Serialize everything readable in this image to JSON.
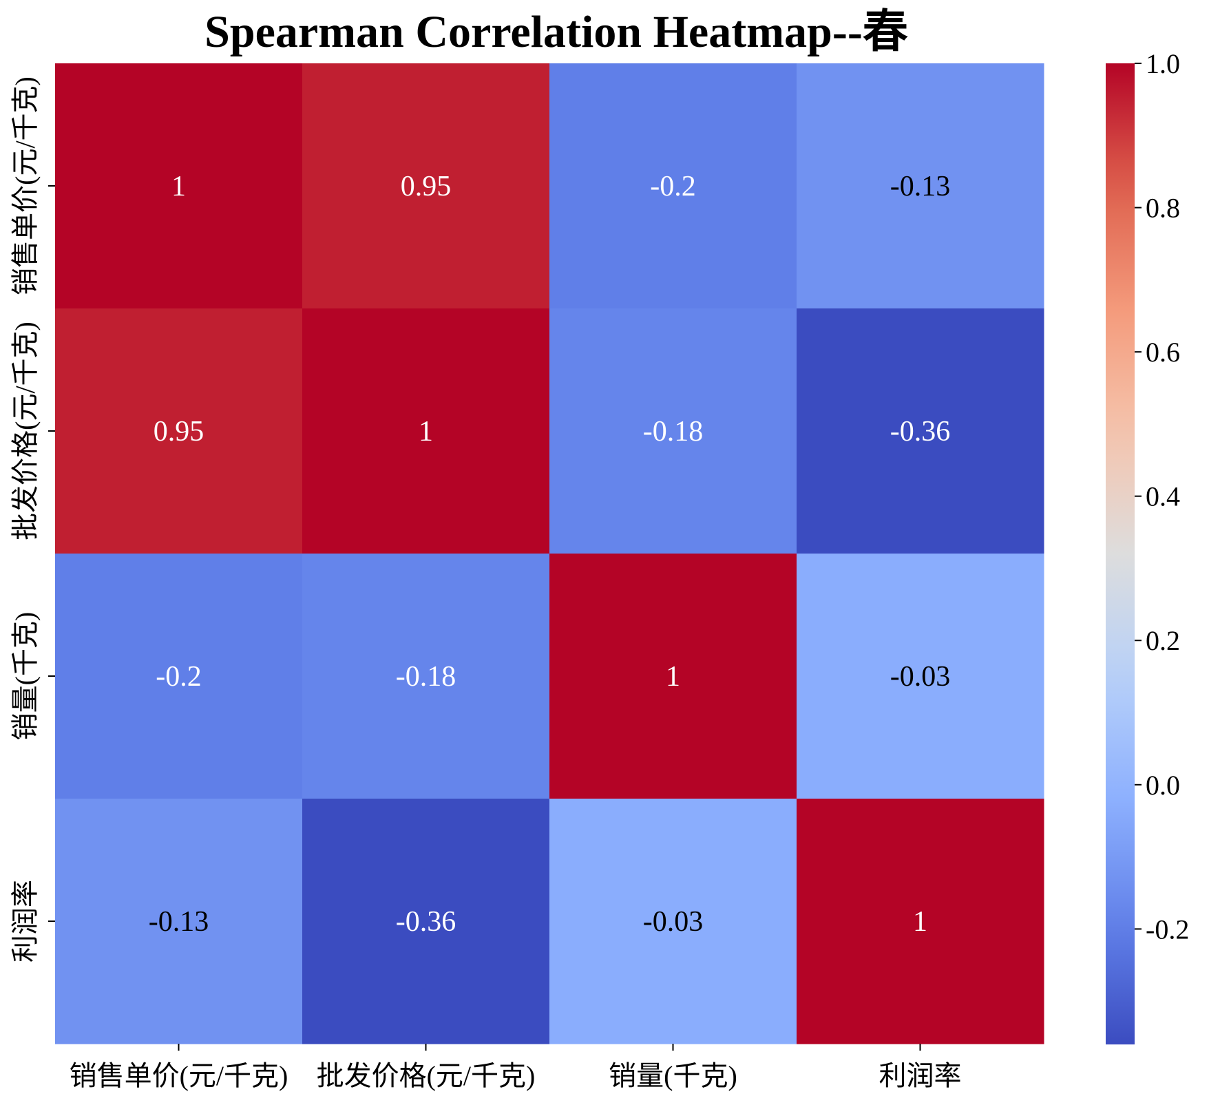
{
  "chart_data": {
    "type": "heatmap",
    "title": "Spearman Correlation Heatmap--春",
    "xlabel": "",
    "ylabel": "",
    "row_labels": [
      "销售单价(元/千克)",
      "批发价格(元/千克)",
      "销量(千克)",
      "利润率"
    ],
    "col_labels": [
      "销售单价(元/千克)",
      "批发价格(元/千克)",
      "销量(千克)",
      "利润率"
    ],
    "values": [
      [
        1,
        0.95,
        -0.2,
        -0.13
      ],
      [
        0.95,
        1,
        -0.18,
        -0.36
      ],
      [
        -0.2,
        -0.18,
        1,
        -0.03
      ],
      [
        -0.13,
        -0.36,
        -0.03,
        1
      ]
    ],
    "annotations": [
      [
        "1",
        "0.95",
        "-0.2",
        "-0.13"
      ],
      [
        "0.95",
        "1",
        "-0.18",
        "-0.36"
      ],
      [
        "-0.2",
        "-0.18",
        "1",
        "-0.03"
      ],
      [
        "-0.13",
        "-0.36",
        "-0.03",
        "1"
      ]
    ],
    "colormap": "coolwarm",
    "vmin": -0.36,
    "vmax": 1.0,
    "colorbar_ticks": [
      1.0,
      0.8,
      0.6,
      0.4,
      0.2,
      0.0,
      -0.2
    ],
    "colorbar_tick_labels": [
      "1.0",
      "0.8",
      "0.6",
      "0.4",
      "0.2",
      "0.0",
      "-0.2"
    ],
    "legend": "right"
  }
}
